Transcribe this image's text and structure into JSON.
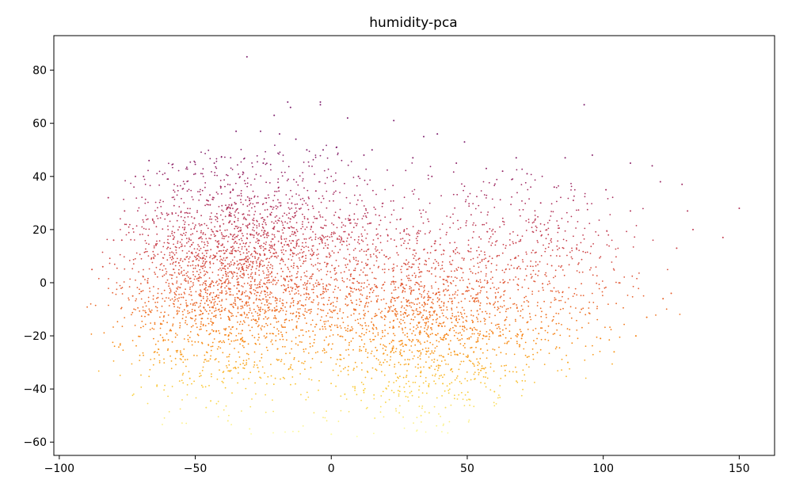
{
  "chart_data": {
    "type": "scatter",
    "title": "humidity-pca",
    "xlabel": "",
    "ylabel": "",
    "xlim": [
      -102,
      163
    ],
    "ylim": [
      -65,
      93
    ],
    "xticks": [
      -100,
      -50,
      0,
      50,
      100,
      150
    ],
    "xtick_labels": [
      "−100",
      "−50",
      "0",
      "50",
      "100",
      "150"
    ],
    "yticks": [
      -60,
      -40,
      -20,
      0,
      20,
      40,
      60,
      80
    ],
    "ytick_labels": [
      "−60",
      "−40",
      "−20",
      "0",
      "20",
      "40",
      "60",
      "80"
    ],
    "grid": false,
    "legend": "none",
    "colormap": "inferno (upper range)",
    "colormap_stops": [
      "#fcffa4",
      "#f9c932",
      "#f8850f",
      "#e55c30",
      "#c73e4c",
      "#a52c60",
      "#7d1e6d"
    ],
    "color_by": "y",
    "point_count": 5000,
    "series": [
      {
        "x": [
          -31,
          93,
          -4,
          -4,
          -15,
          -16,
          6,
          23,
          -21,
          -35,
          -19,
          39,
          -26,
          49,
          -13,
          -9,
          34,
          15,
          2,
          -3,
          12,
          -43,
          -69,
          -82,
          -88,
          -77,
          -67,
          96,
          110,
          118,
          121,
          131,
          144,
          150,
          133,
          129,
          127,
          110,
          101,
          89,
          86,
          82,
          77,
          72,
          68,
          63,
          57,
          46,
          37,
          30,
          10,
          -25,
          -50,
          -60,
          -72,
          -76,
          -80,
          -84,
          -73,
          -52,
          -46,
          -38,
          -30,
          -12,
          0,
          16,
          25,
          33,
          36,
          42,
          51,
          55,
          60,
          64,
          70,
          79,
          87,
          99,
          104,
          112,
          116,
          122,
          125,
          92,
          72,
          -55,
          -27,
          20,
          41,
          5
        ],
        "y": [
          85,
          67,
          67,
          68,
          66,
          68,
          62,
          61,
          63,
          57,
          56,
          56,
          57,
          53,
          54,
          50,
          55,
          50,
          51,
          50,
          48,
          45,
          40,
          32,
          5,
          16,
          46,
          48,
          45,
          44,
          38,
          27,
          17,
          28,
          20,
          37,
          13,
          27,
          35,
          31,
          47,
          36,
          30,
          41,
          47,
          42,
          43,
          45,
          40,
          47,
          40,
          45,
          41,
          39,
          40,
          27,
          16,
          6,
          -5,
          -36,
          -47,
          -52,
          -55,
          -56,
          -57,
          -51,
          -49,
          -50,
          -49,
          -47,
          -44,
          -33,
          -41,
          -35,
          -21,
          -12,
          -30,
          -21,
          -26,
          -20,
          -13,
          -6,
          -4,
          -10,
          -15,
          -27,
          -32,
          -45,
          -38,
          -42
        ]
      }
    ]
  }
}
